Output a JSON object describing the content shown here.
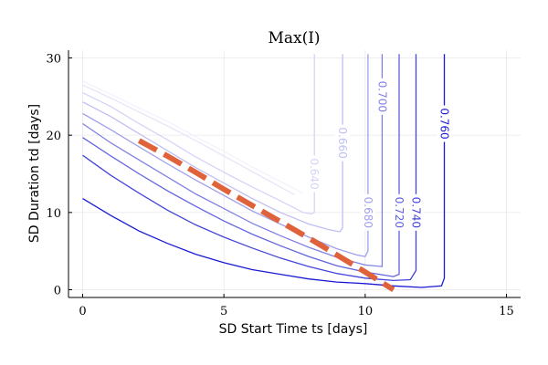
{
  "chart_data": {
    "type": "contour",
    "title": "Max(I)",
    "xlabel": "SD Start Time ts [days]",
    "ylabel": "SD Duration td [days]",
    "xlim": [
      -0.5,
      15.5
    ],
    "ylim": [
      -1,
      31
    ],
    "x_ticks": [
      0,
      5,
      10,
      15
    ],
    "y_ticks": [
      0,
      10,
      20,
      30
    ],
    "x_tick_labels": [
      "0",
      "5",
      "10",
      "15"
    ],
    "y_tick_labels": [
      "0",
      "10",
      "20",
      "30"
    ],
    "grid": true,
    "contours": [
      {
        "level": 0.62,
        "color": "#f2f2fb",
        "points": [
          [
            0,
            27.0
          ],
          [
            1,
            25.3
          ],
          [
            2,
            23.5
          ],
          [
            3,
            21.8
          ],
          [
            4,
            19.8
          ],
          [
            5,
            17.9
          ],
          [
            6,
            15.9
          ],
          [
            7,
            14.0
          ],
          [
            7.8,
            12.5
          ]
        ]
      },
      {
        "level": 0.63,
        "color": "#e6e6f8",
        "points": [
          [
            0,
            26.5
          ],
          [
            1,
            24.8
          ],
          [
            2,
            23.0
          ],
          [
            3,
            21.2
          ],
          [
            4,
            19.3
          ],
          [
            5,
            17.3
          ],
          [
            6,
            15.3
          ],
          [
            7,
            13.3
          ],
          [
            7.5,
            12.3
          ]
        ]
      },
      {
        "level": 0.64,
        "color": "#d4d4f6",
        "label": "0.640",
        "label_pos": [
          8.2,
          15.0
        ],
        "points": [
          [
            0,
            25.5
          ],
          [
            1,
            23.7
          ],
          [
            2,
            21.5
          ],
          [
            3,
            19.4
          ],
          [
            4,
            17.2
          ],
          [
            5,
            15.2
          ],
          [
            6,
            13.3
          ],
          [
            7,
            11.5
          ],
          [
            7.8,
            10.0
          ],
          [
            8.1,
            9.8
          ],
          [
            8.2,
            10.0
          ],
          [
            8.2,
            12.0
          ],
          [
            8.2,
            30.5
          ]
        ]
      },
      {
        "level": 0.66,
        "color": "#bfbff3",
        "label": "0.660",
        "label_pos": [
          9.2,
          19.0
        ],
        "points": [
          [
            0,
            24.3
          ],
          [
            1,
            22.4
          ],
          [
            2,
            20.2
          ],
          [
            3,
            18.0
          ],
          [
            4,
            15.8
          ],
          [
            5,
            13.8
          ],
          [
            6,
            11.8
          ],
          [
            7,
            10.0
          ],
          [
            8,
            8.5
          ],
          [
            8.7,
            7.8
          ],
          [
            9.1,
            7.5
          ],
          [
            9.2,
            8.0
          ],
          [
            9.2,
            12.0
          ],
          [
            9.2,
            30.5
          ]
        ]
      },
      {
        "level": 0.68,
        "color": "#9f9fed",
        "label": "0.680",
        "label_pos": [
          10.1,
          10.0
        ],
        "points": [
          [
            0,
            22.8
          ],
          [
            1,
            20.7
          ],
          [
            2,
            18.5
          ],
          [
            3,
            16.3
          ],
          [
            4,
            14.2
          ],
          [
            5,
            12.2
          ],
          [
            6,
            10.2
          ],
          [
            7,
            8.5
          ],
          [
            8,
            6.8
          ],
          [
            9,
            5.3
          ],
          [
            9.7,
            4.5
          ],
          [
            10.0,
            4.3
          ],
          [
            10.1,
            5.0
          ],
          [
            10.1,
            30.5
          ]
        ]
      },
      {
        "level": 0.7,
        "color": "#8080e6",
        "label": "0.700",
        "label_pos": [
          10.6,
          25.0
        ],
        "points": [
          [
            0,
            21.5
          ],
          [
            1,
            19.0
          ],
          [
            2,
            16.8
          ],
          [
            3,
            14.6
          ],
          [
            4,
            12.4
          ],
          [
            5,
            10.5
          ],
          [
            6,
            8.6
          ],
          [
            7,
            7.0
          ],
          [
            8,
            5.5
          ],
          [
            9,
            4.2
          ],
          [
            10,
            3.2
          ],
          [
            10.6,
            3.0
          ],
          [
            10.6,
            5.0
          ],
          [
            10.6,
            30.5
          ]
        ]
      },
      {
        "level": 0.72,
        "color": "#6262e0",
        "label": "0.720",
        "label_pos": [
          11.2,
          10.0
        ],
        "points": [
          [
            0,
            19.7
          ],
          [
            1,
            17.3
          ],
          [
            2,
            15.0
          ],
          [
            3,
            12.8
          ],
          [
            4,
            10.8
          ],
          [
            5,
            8.9
          ],
          [
            6,
            7.2
          ],
          [
            7,
            5.7
          ],
          [
            8,
            4.3
          ],
          [
            9,
            3.1
          ],
          [
            10,
            2.3
          ],
          [
            11,
            1.7
          ],
          [
            11.2,
            2.0
          ],
          [
            11.2,
            30.5
          ]
        ]
      },
      {
        "level": 0.74,
        "color": "#4444da",
        "label": "0.740",
        "label_pos": [
          11.8,
          10.0
        ],
        "points": [
          [
            0,
            17.4
          ],
          [
            1,
            14.8
          ],
          [
            2,
            12.5
          ],
          [
            3,
            10.3
          ],
          [
            4,
            8.4
          ],
          [
            5,
            6.8
          ],
          [
            6,
            5.4
          ],
          [
            7,
            4.1
          ],
          [
            8,
            3.0
          ],
          [
            9,
            2.1
          ],
          [
            10,
            1.5
          ],
          [
            11,
            1.2
          ],
          [
            11.6,
            1.3
          ],
          [
            11.8,
            2.5
          ],
          [
            11.8,
            30.5
          ]
        ]
      },
      {
        "level": 0.76,
        "color": "#1a1ad4",
        "label": "0.760",
        "label_pos": [
          12.8,
          21.5
        ],
        "points": [
          [
            0,
            11.8
          ],
          [
            1,
            9.6
          ],
          [
            2,
            7.6
          ],
          [
            3,
            6.0
          ],
          [
            4,
            4.6
          ],
          [
            5,
            3.5
          ],
          [
            6,
            2.6
          ],
          [
            7,
            2.0
          ],
          [
            8,
            1.4
          ],
          [
            9,
            1.0
          ],
          [
            10,
            0.8
          ],
          [
            11,
            0.5
          ],
          [
            12,
            0.3
          ],
          [
            12.7,
            0.5
          ],
          [
            12.8,
            1.5
          ],
          [
            12.8,
            30.5
          ]
        ]
      }
    ],
    "overlay_line": {
      "color": "#e0623a",
      "style": "dashed",
      "points": [
        [
          2,
          19.3
        ],
        [
          3,
          17.3
        ],
        [
          4,
          15.2
        ],
        [
          5,
          13.0
        ],
        [
          6,
          10.9
        ],
        [
          7,
          8.8
        ],
        [
          8,
          6.7
        ],
        [
          9,
          4.5
        ],
        [
          10,
          2.3
        ],
        [
          11,
          0.0
        ]
      ]
    }
  }
}
